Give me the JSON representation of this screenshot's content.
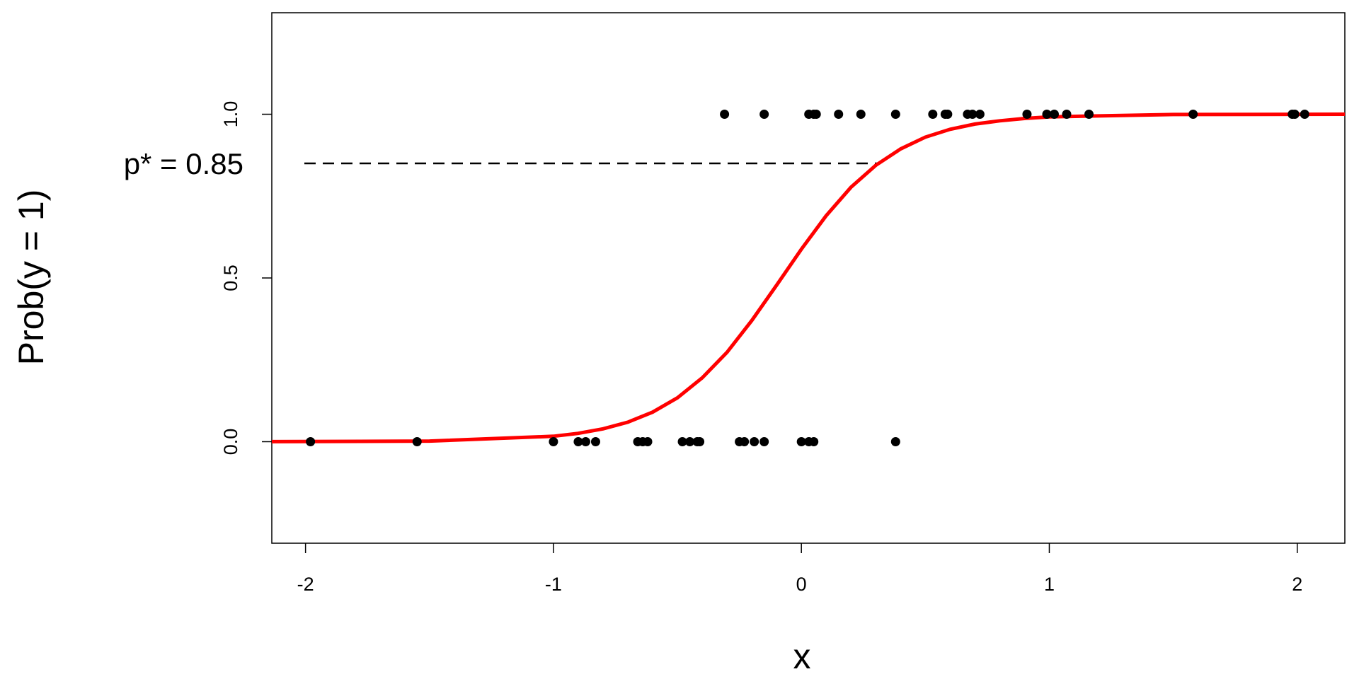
{
  "chart_data": {
    "type": "scatter",
    "xlabel": "x",
    "ylabel": "Prob(y = 1)",
    "xlim": [
      -2.136,
      2.192
    ],
    "ylim": [
      -0.31,
      1.31
    ],
    "xticks": [
      -2,
      -1,
      0,
      1,
      2
    ],
    "yticks": [
      {
        "value": 0,
        "label": "0.0"
      },
      0.5,
      {
        "value": 1,
        "label": "1.0"
      }
    ],
    "grid": false,
    "points": {
      "color": "#000000",
      "x": [
        -0.31,
        -0.15,
        0.03,
        0.05,
        0.06,
        0.15,
        0.24,
        0.38,
        0.53,
        0.58,
        0.59,
        0.67,
        0.69,
        0.72,
        0.91,
        0.99,
        1.02,
        1.07,
        1.16,
        1.58,
        1.98,
        1.99,
        2.03,
        -1.98,
        -1.55,
        -1.0,
        -0.9,
        -0.87,
        -0.83,
        -0.66,
        -0.64,
        -0.62,
        -0.48,
        -0.45,
        -0.42,
        -0.41,
        -0.25,
        -0.23,
        -0.19,
        -0.15,
        0.0,
        0.03,
        0.05,
        0.38
      ],
      "y": [
        1,
        1,
        1,
        1,
        1,
        1,
        1,
        1,
        1,
        1,
        1,
        1,
        1,
        1,
        1,
        1,
        1,
        1,
        1,
        1,
        1,
        1,
        1,
        0,
        0,
        0,
        0,
        0,
        0,
        0,
        0,
        0,
        0,
        0,
        0,
        0,
        0,
        0,
        0,
        0,
        0,
        0,
        0,
        0
      ]
    },
    "curve": {
      "color": "#ff0000",
      "x": [
        -2.136,
        -1.5,
        -1.0,
        -0.9,
        -0.8,
        -0.7,
        -0.6,
        -0.5,
        -0.4,
        -0.3,
        -0.2,
        -0.1,
        0.0,
        0.1,
        0.2,
        0.3,
        0.4,
        0.5,
        0.6,
        0.7,
        0.8,
        0.9,
        1.0,
        1.5,
        2.192
      ],
      "y": [
        0.0001,
        0.0018,
        0.0165,
        0.0254,
        0.0392,
        0.0596,
        0.0903,
        0.134,
        0.195,
        0.273,
        0.37,
        0.478,
        0.588,
        0.69,
        0.777,
        0.844,
        0.894,
        0.93,
        0.954,
        0.97,
        0.98,
        0.987,
        0.992,
        0.9991,
        1.0
      ]
    },
    "threshold": {
      "text": "p* = 0.85",
      "y": 0.85,
      "x_end": 0.31
    }
  }
}
